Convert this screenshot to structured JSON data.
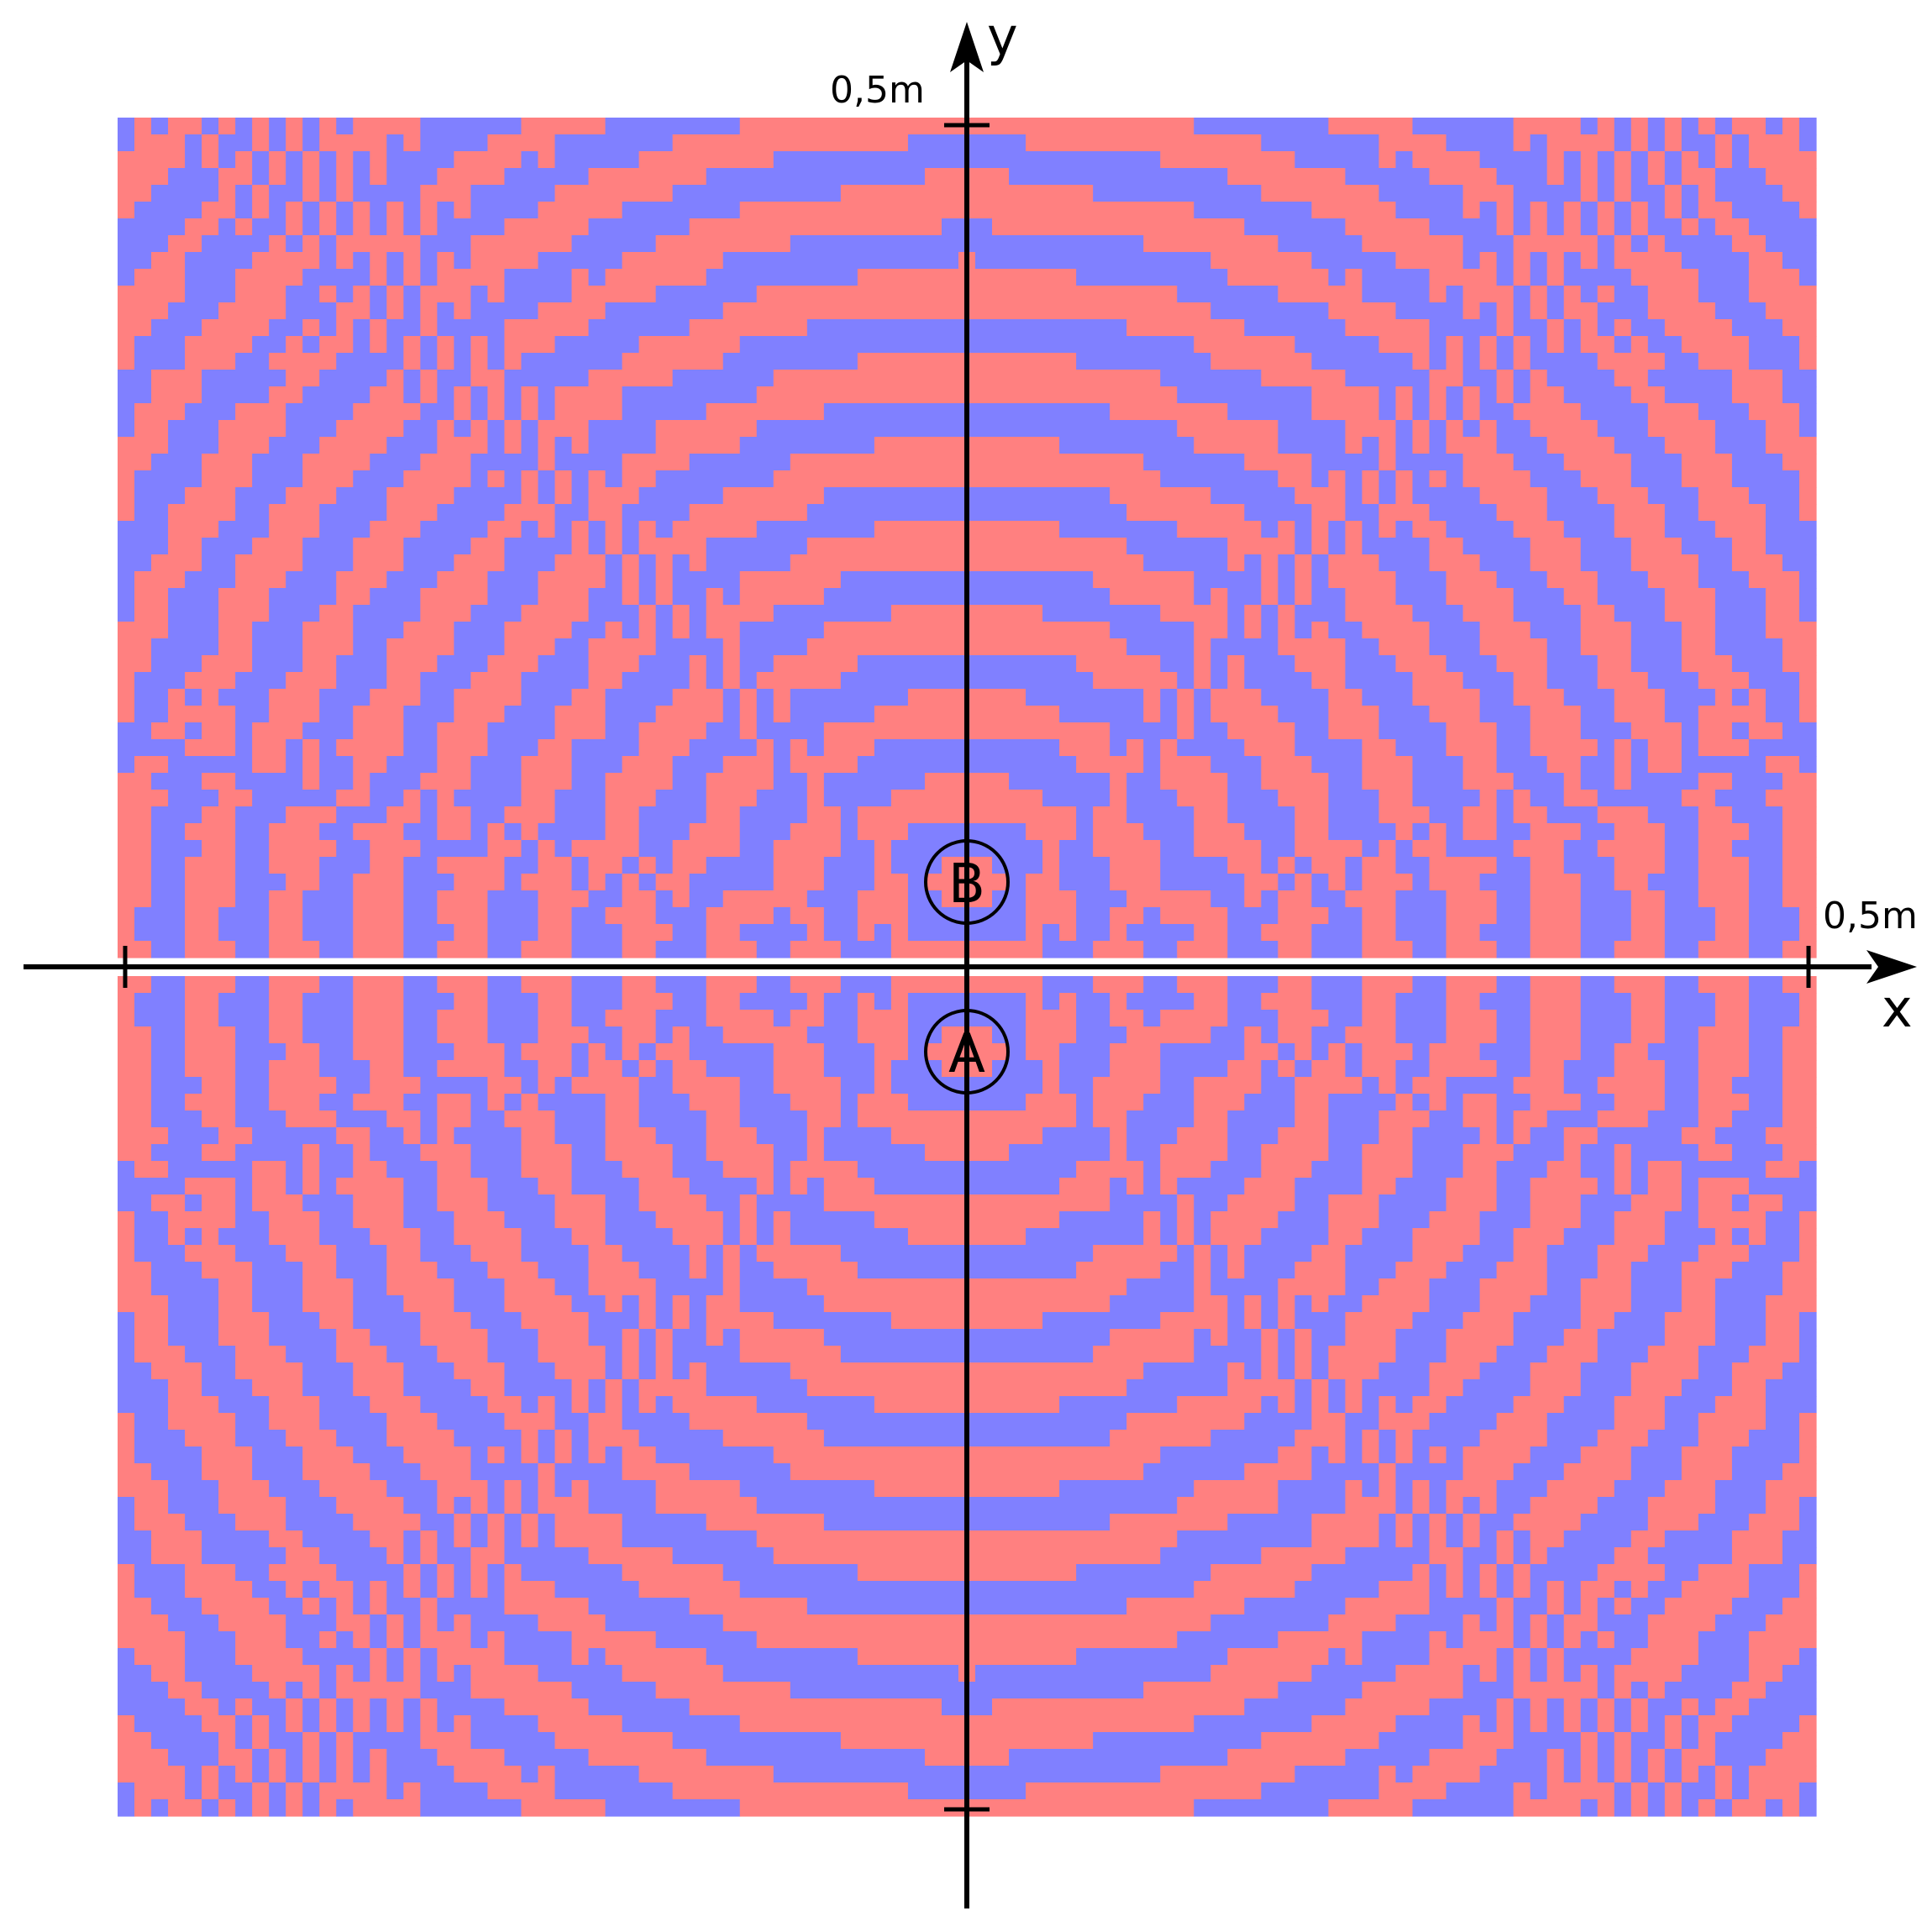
{
  "colors": {
    "region_a": "#ff8080",
    "region_b": "#8080ff",
    "axes": "#000000",
    "background": "#ffffff"
  },
  "axes": {
    "x_label": "x",
    "y_label": "y",
    "x_tick_label": "0,5m",
    "y_tick_label": "0,5m"
  },
  "points": {
    "a_label": "A",
    "b_label": "B"
  }
}
